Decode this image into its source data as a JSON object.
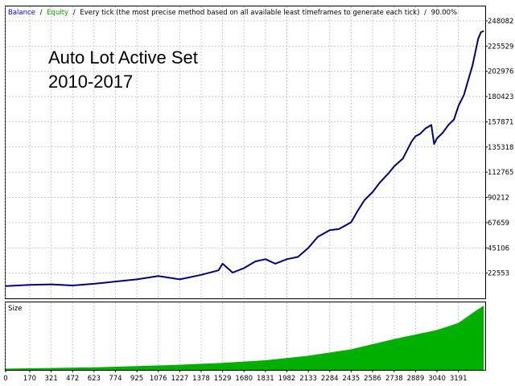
{
  "header": {
    "balance_label": "Balance",
    "sep1": "/",
    "equity_label": "Equity",
    "sep2": "/",
    "description": "Every tick (the most precise method based on all available least timeframes to generate each tick)",
    "sep3": "/",
    "quality": "90.00%"
  },
  "annotation": {
    "line1": "Auto Lot Active Set",
    "line2": "2010-2017"
  },
  "size_panel": {
    "label": "Size"
  },
  "colors": {
    "balance": "#0000ff",
    "equity": "#00a000",
    "curve": "#000080",
    "size_fill": "#00b000",
    "grid": "#c8c8c8"
  },
  "chart_data": [
    {
      "type": "line",
      "title": "",
      "xlabel": "",
      "ylabel": "",
      "y_ticks": [
        22553,
        45106,
        67659,
        90212,
        112765,
        135318,
        157871,
        180423,
        202976,
        225529,
        248082
      ],
      "x_ticks": [
        0,
        170,
        321,
        472,
        623,
        774,
        925,
        1076,
        1227,
        1378,
        1529,
        1680,
        1831,
        1982,
        2133,
        2284,
        2435,
        2586,
        2738,
        2889,
        3040,
        3191
      ],
      "xlim": [
        0,
        3380
      ],
      "ylim": [
        0,
        261000
      ],
      "grid": true,
      "series": [
        {
          "name": "Balance",
          "x": [
            0,
            170,
            321,
            472,
            623,
            774,
            925,
            1076,
            1227,
            1378,
            1500,
            1529,
            1600,
            1680,
            1760,
            1831,
            1900,
            1982,
            2060,
            2133,
            2200,
            2284,
            2350,
            2435,
            2480,
            2530,
            2586,
            2640,
            2700,
            2738,
            2800,
            2860,
            2889,
            2920,
            2960,
            3000,
            3020,
            3040,
            3080,
            3120,
            3160,
            3191,
            3230,
            3260,
            3290,
            3310,
            3330,
            3350,
            3370
          ],
          "y": [
            11000,
            12000,
            12500,
            11500,
            13000,
            15000,
            17000,
            20000,
            17000,
            21000,
            25000,
            31000,
            23000,
            27000,
            33000,
            35000,
            31000,
            35000,
            37000,
            45000,
            55000,
            61000,
            62000,
            68000,
            78000,
            88000,
            95000,
            104000,
            112000,
            118000,
            125000,
            140000,
            145000,
            147000,
            152000,
            155000,
            138000,
            143000,
            148000,
            155000,
            160000,
            172000,
            182000,
            195000,
            208000,
            220000,
            232000,
            238000,
            239000
          ]
        },
        {
          "name": "Size",
          "x": [
            0,
            321,
            623,
            925,
            1227,
            1529,
            1831,
            2133,
            2435,
            2586,
            2738,
            2889,
            3040,
            3191,
            3300,
            3370
          ],
          "y": [
            0.02,
            0.03,
            0.04,
            0.06,
            0.08,
            0.11,
            0.15,
            0.22,
            0.32,
            0.4,
            0.48,
            0.55,
            0.62,
            0.73,
            0.9,
            1.0
          ]
        }
      ]
    }
  ]
}
